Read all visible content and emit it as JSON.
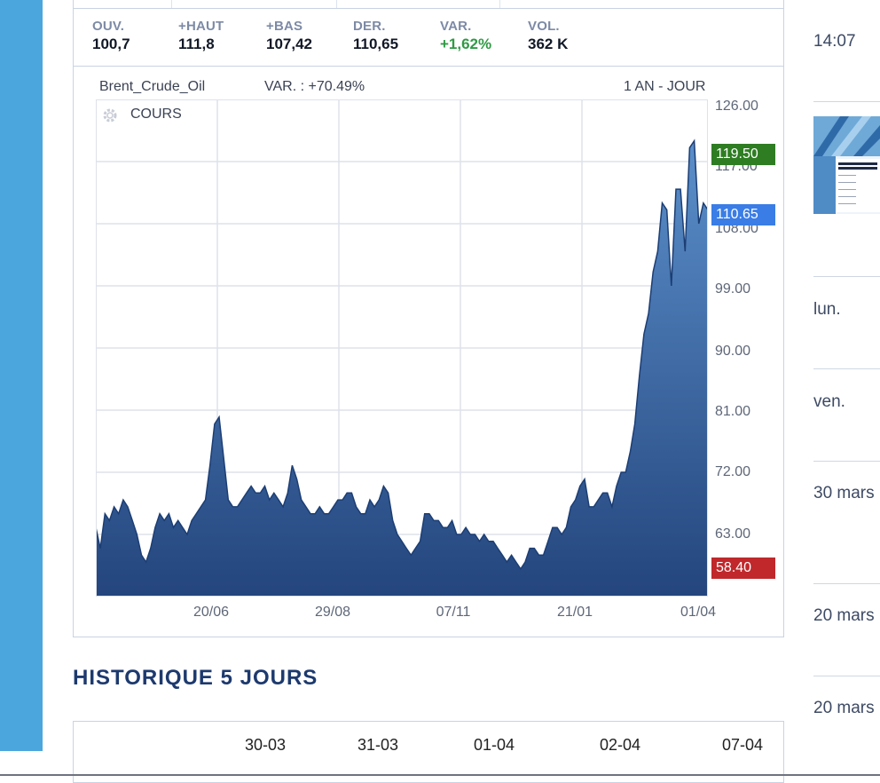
{
  "stats": [
    {
      "label": "OUV.",
      "value": "100,7",
      "positive": false
    },
    {
      "label": "+HAUT",
      "value": "111,8",
      "positive": false
    },
    {
      "label": "+BAS",
      "value": "107,42",
      "positive": false
    },
    {
      "label": "DER.",
      "value": "110,65",
      "positive": false
    },
    {
      "label": "VAR.",
      "value": "+1,62%",
      "positive": true
    },
    {
      "label": "VOL.",
      "value": "362 K",
      "positive": false
    }
  ],
  "chart": {
    "instrument": "Brent_Crude_Oil",
    "variation": "VAR. : +70.49%",
    "period": "1 AN - JOUR",
    "series_label": "COURS",
    "price_tags": {
      "high": "119.50",
      "last": "110.65",
      "low": "58.40"
    },
    "colors": {
      "fill_top": "#5b8fca",
      "fill_bottom": "#24457d",
      "line": "#1c3e74",
      "tag_high": "#2e7d22",
      "tag_last": "#3a7de6",
      "tag_low": "#c0282b"
    }
  },
  "chart_data": {
    "type": "area",
    "title": "Brent_Crude_Oil",
    "xlabel": "",
    "ylabel": "",
    "ylim": [
      54,
      126
    ],
    "y_ticks": [
      "126.00",
      "117.00",
      "108.00",
      "99.00",
      "90.00",
      "81.00",
      "72.00",
      "63.00"
    ],
    "x_ticks": [
      "20/06",
      "29/08",
      "07/11",
      "21/01",
      "01/04"
    ],
    "grid": true,
    "series": [
      {
        "values": [
          64,
          61,
          66,
          65,
          67,
          66,
          68,
          67,
          65,
          63,
          60,
          59,
          61,
          64,
          66,
          65,
          66,
          64,
          65,
          64,
          63,
          65,
          66,
          67,
          68,
          73,
          79,
          80,
          74,
          68,
          67,
          67,
          68,
          69,
          70,
          69,
          69,
          70,
          68,
          69,
          68,
          67,
          69,
          73,
          71,
          68,
          67,
          66,
          66,
          67,
          66,
          66,
          67,
          68,
          68,
          69,
          69,
          67,
          66,
          66,
          68,
          67,
          68,
          70,
          69,
          65,
          63,
          62,
          61,
          60,
          61,
          62,
          66,
          66,
          65,
          65,
          64,
          64,
          65,
          63,
          63,
          64,
          63,
          63,
          62,
          63,
          62,
          62,
          61,
          60,
          59,
          60,
          59,
          58,
          59,
          61,
          61,
          60,
          60,
          62,
          64,
          64,
          63,
          64,
          67,
          68,
          70,
          71,
          67,
          67,
          68,
          69,
          69,
          67,
          70,
          72,
          72,
          75,
          79,
          86,
          92,
          95,
          101,
          104,
          111,
          110,
          99,
          113,
          113,
          104,
          119,
          120,
          108,
          111,
          110
        ]
      }
    ]
  },
  "history": {
    "title": "HISTORIQUE 5 JOURS",
    "dates": [
      "30-03",
      "31-03",
      "01-04",
      "02-04",
      "07-04"
    ]
  },
  "sidebar": {
    "items": [
      "14:07",
      "lun.",
      "ven.",
      "30 mars",
      "20 mars",
      "20 mars"
    ]
  }
}
